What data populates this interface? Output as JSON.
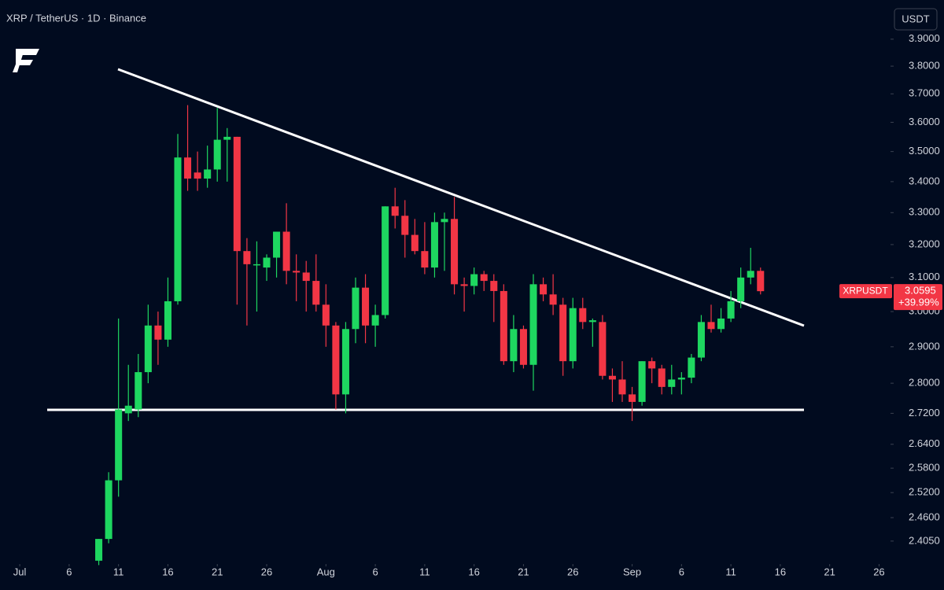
{
  "chart_data": {
    "type": "candlestick",
    "title": "XRP / TetherUS · 1D · Binance",
    "currency_button": "USDT",
    "symbol": "XRPUSDT",
    "change_label": "+39.99%",
    "log_scale": true,
    "grid": false,
    "up_color": "#1ed760",
    "down_color": "#f23645",
    "x": [
      "Jul 9",
      "Jul 10",
      "Jul 11",
      "Jul 12",
      "Jul 13",
      "Jul 14",
      "Jul 15",
      "Jul 16",
      "Jul 17",
      "Jul 18",
      "Jul 19",
      "Jul 20",
      "Jul 21",
      "Jul 22",
      "Jul 23",
      "Jul 24",
      "Jul 25",
      "Jul 26",
      "Jul 27",
      "Jul 28",
      "Jul 29",
      "Jul 30",
      "Jul 31",
      "Aug 1",
      "Aug 2",
      "Aug 3",
      "Aug 4",
      "Aug 5",
      "Aug 6",
      "Aug 7",
      "Aug 8",
      "Aug 9",
      "Aug 10",
      "Aug 11",
      "Aug 12",
      "Aug 13",
      "Aug 14",
      "Aug 15",
      "Aug 16",
      "Aug 17",
      "Aug 18",
      "Aug 19",
      "Aug 20",
      "Aug 21",
      "Aug 22",
      "Aug 23",
      "Aug 24",
      "Aug 25",
      "Aug 26",
      "Aug 27",
      "Aug 28",
      "Aug 29",
      "Aug 30",
      "Aug 31",
      "Sep 1",
      "Sep 2",
      "Sep 3",
      "Sep 4",
      "Sep 5",
      "Sep 6",
      "Sep 7",
      "Sep 8",
      "Sep 9",
      "Sep 10",
      "Sep 11",
      "Sep 12",
      "Sep 13",
      "Sep 14"
    ],
    "open": [
      2.36,
      2.41,
      2.55,
      2.72,
      2.73,
      2.83,
      2.96,
      2.92,
      3.03,
      3.48,
      3.43,
      3.41,
      3.44,
      3.54,
      3.55,
      3.18,
      3.14,
      3.13,
      3.16,
      3.24,
      3.12,
      3.115,
      3.09,
      3.02,
      2.96,
      2.77,
      2.95,
      3.07,
      2.96,
      2.99,
      3.32,
      3.29,
      3.23,
      3.18,
      3.13,
      3.27,
      3.28,
      3.08,
      3.075,
      3.11,
      3.09,
      3.06,
      2.86,
      2.95,
      2.85,
      3.08,
      3.05,
      3.02,
      2.86,
      3.01,
      2.97,
      2.97,
      2.82,
      2.81,
      2.77,
      2.75,
      2.86,
      2.84,
      2.79,
      2.81,
      2.815,
      2.87,
      2.97,
      2.95,
      2.98,
      3.03,
      3.1,
      3.12
    ],
    "high": [
      2.41,
      2.57,
      2.98,
      2.85,
      2.88,
      3.02,
      3.0,
      3.1,
      3.56,
      3.66,
      3.5,
      3.52,
      3.65,
      3.58,
      3.55,
      3.22,
      3.21,
      3.17,
      3.24,
      3.33,
      3.17,
      3.15,
      3.17,
      3.08,
      2.97,
      2.97,
      3.1,
      3.11,
      3.02,
      3.32,
      3.38,
      3.34,
      3.28,
      3.27,
      3.3,
      3.3,
      3.35,
      3.1,
      3.13,
      3.12,
      3.11,
      3.08,
      2.99,
      2.96,
      3.11,
      3.1,
      3.11,
      3.04,
      3.04,
      3.04,
      2.98,
      2.99,
      2.84,
      2.86,
      2.79,
      2.86,
      2.87,
      2.85,
      2.85,
      2.83,
      2.88,
      2.99,
      3.02,
      3.01,
      3.06,
      3.13,
      3.19,
      3.13
    ],
    "low": [
      2.35,
      2.4,
      2.51,
      2.7,
      2.71,
      2.8,
      2.85,
      2.9,
      3.02,
      3.37,
      3.37,
      3.38,
      3.4,
      3.4,
      3.02,
      2.96,
      3.0,
      3.09,
      3.1,
      3.08,
      3.03,
      3.0,
      3.0,
      2.9,
      2.73,
      2.72,
      2.91,
      2.91,
      2.9,
      2.98,
      3.25,
      3.16,
      3.17,
      3.11,
      3.1,
      3.12,
      3.05,
      3.0,
      3.05,
      3.06,
      2.97,
      2.85,
      2.83,
      2.84,
      2.78,
      3.03,
      2.99,
      2.82,
      2.84,
      2.95,
      2.9,
      2.81,
      2.75,
      2.75,
      2.7,
      2.74,
      2.8,
      2.77,
      2.77,
      2.77,
      2.8,
      2.86,
      2.94,
      2.94,
      2.97,
      3.01,
      3.08,
      3.05
    ],
    "close": [
      2.41,
      2.55,
      2.73,
      2.74,
      2.83,
      2.96,
      2.92,
      3.03,
      3.48,
      3.41,
      3.41,
      3.44,
      3.54,
      3.55,
      3.18,
      3.14,
      3.14,
      3.16,
      3.24,
      3.12,
      3.115,
      3.09,
      3.02,
      2.96,
      2.77,
      2.95,
      3.07,
      2.96,
      2.99,
      3.32,
      3.29,
      3.23,
      3.18,
      3.13,
      3.27,
      3.28,
      3.08,
      3.075,
      3.11,
      3.09,
      3.06,
      2.86,
      2.95,
      2.85,
      3.08,
      3.05,
      3.02,
      2.86,
      3.01,
      2.97,
      2.975,
      2.82,
      2.81,
      2.77,
      2.75,
      2.86,
      2.84,
      2.79,
      2.81,
      2.815,
      2.87,
      2.97,
      2.95,
      2.98,
      3.03,
      3.1,
      3.12,
      3.0595
    ],
    "ylim": [
      2.356,
      4.05
    ],
    "yticks": [
      {
        "value": 3.9,
        "label": "3.9000"
      },
      {
        "value": 3.8,
        "label": "3.8000"
      },
      {
        "value": 3.7,
        "label": "3.7000"
      },
      {
        "value": 3.6,
        "label": "3.6000"
      },
      {
        "value": 3.5,
        "label": "3.5000"
      },
      {
        "value": 3.4,
        "label": "3.4000"
      },
      {
        "value": 3.3,
        "label": "3.3000"
      },
      {
        "value": 3.2,
        "label": "3.2000"
      },
      {
        "value": 3.1,
        "label": "3.1000"
      },
      {
        "value": 3.0,
        "label": "3.0000"
      },
      {
        "value": 2.9,
        "label": "2.9000"
      },
      {
        "value": 2.8,
        "label": "2.8000"
      },
      {
        "value": 2.72,
        "label": "2.7200"
      },
      {
        "value": 2.64,
        "label": "2.6400"
      },
      {
        "value": 2.58,
        "label": "2.5800"
      },
      {
        "value": 2.52,
        "label": "2.5200"
      },
      {
        "value": 2.46,
        "label": "2.4600"
      },
      {
        "value": 2.405,
        "label": "2.4050"
      }
    ],
    "xlim": [
      "Jun 29",
      "Sep 27"
    ],
    "xticks": [
      {
        "value": "Jul 1",
        "label": "Jul"
      },
      {
        "value": "Jul 6",
        "label": "6"
      },
      {
        "value": "Jul 11",
        "label": "11"
      },
      {
        "value": "Jul 16",
        "label": "16"
      },
      {
        "value": "Jul 21",
        "label": "21"
      },
      {
        "value": "Jul 26",
        "label": "26"
      },
      {
        "value": "Aug 1",
        "label": "Aug"
      },
      {
        "value": "Aug 6",
        "label": "6"
      },
      {
        "value": "Aug 11",
        "label": "11"
      },
      {
        "value": "Aug 16",
        "label": "16"
      },
      {
        "value": "Aug 21",
        "label": "21"
      },
      {
        "value": "Aug 26",
        "label": "26"
      },
      {
        "value": "Sep 1",
        "label": "Sep"
      },
      {
        "value": "Sep 6",
        "label": "6"
      },
      {
        "value": "Sep 11",
        "label": "11"
      },
      {
        "value": "Sep 16",
        "label": "16"
      },
      {
        "value": "Sep 21",
        "label": "21"
      },
      {
        "value": "Sep 26",
        "label": "26"
      }
    ]
  }
}
